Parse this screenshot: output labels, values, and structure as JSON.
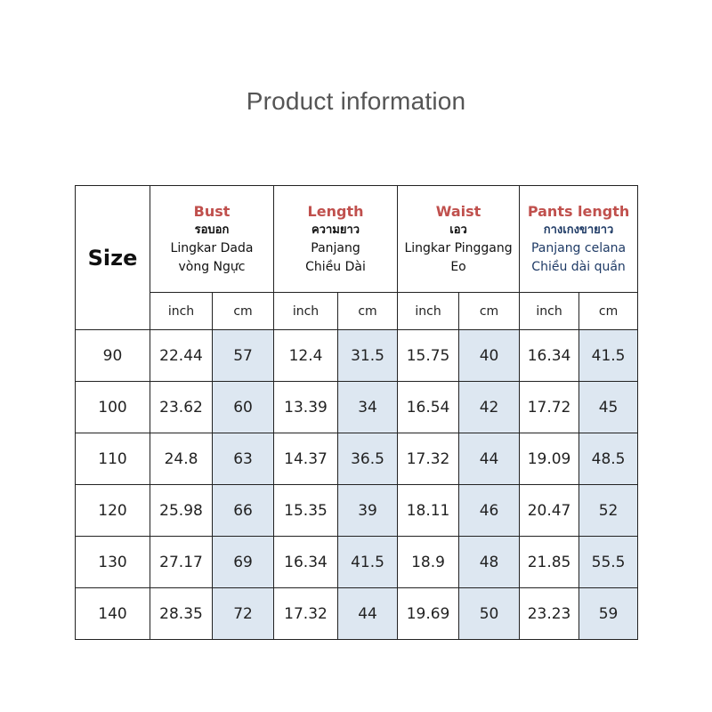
{
  "title": "Product information",
  "table": {
    "size_label": "Size",
    "groups": [
      {
        "title": "Bust",
        "thai": "รอบอก",
        "line1": "Lingkar Dada",
        "line2": "vòng Ngực"
      },
      {
        "title": "Length",
        "thai": "ความยาว",
        "line1": "Panjang",
        "line2": "Chiều Dài"
      },
      {
        "title": "Waist",
        "thai": "เอว",
        "line1": "Lingkar Pinggang",
        "line2": "Eo"
      },
      {
        "title": "Pants length",
        "thai": "กางเกงขายาว",
        "line1": "Panjang celana",
        "line2": "Chiều dài quần"
      }
    ],
    "unit_inch": "inch",
    "unit_cm": "cm",
    "rows": [
      {
        "size": "90",
        "cells": [
          "22.44",
          "57",
          "12.4",
          "31.5",
          "15.75",
          "40",
          "16.34",
          "41.5"
        ]
      },
      {
        "size": "100",
        "cells": [
          "23.62",
          "60",
          "13.39",
          "34",
          "16.54",
          "42",
          "17.72",
          "45"
        ]
      },
      {
        "size": "110",
        "cells": [
          "24.8",
          "63",
          "14.37",
          "36.5",
          "17.32",
          "44",
          "19.09",
          "48.5"
        ]
      },
      {
        "size": "120",
        "cells": [
          "25.98",
          "66",
          "15.35",
          "39",
          "18.11",
          "46",
          "20.47",
          "52"
        ]
      },
      {
        "size": "130",
        "cells": [
          "27.17",
          "69",
          "16.34",
          "41.5",
          "18.9",
          "48",
          "21.85",
          "55.5"
        ]
      },
      {
        "size": "140",
        "cells": [
          "28.35",
          "72",
          "17.32",
          "44",
          "19.69",
          "50",
          "23.23",
          "59"
        ]
      }
    ]
  },
  "colors": {
    "heading_red": "#c0504d",
    "cm_fill": "#dde7f1",
    "border": "#222222"
  }
}
